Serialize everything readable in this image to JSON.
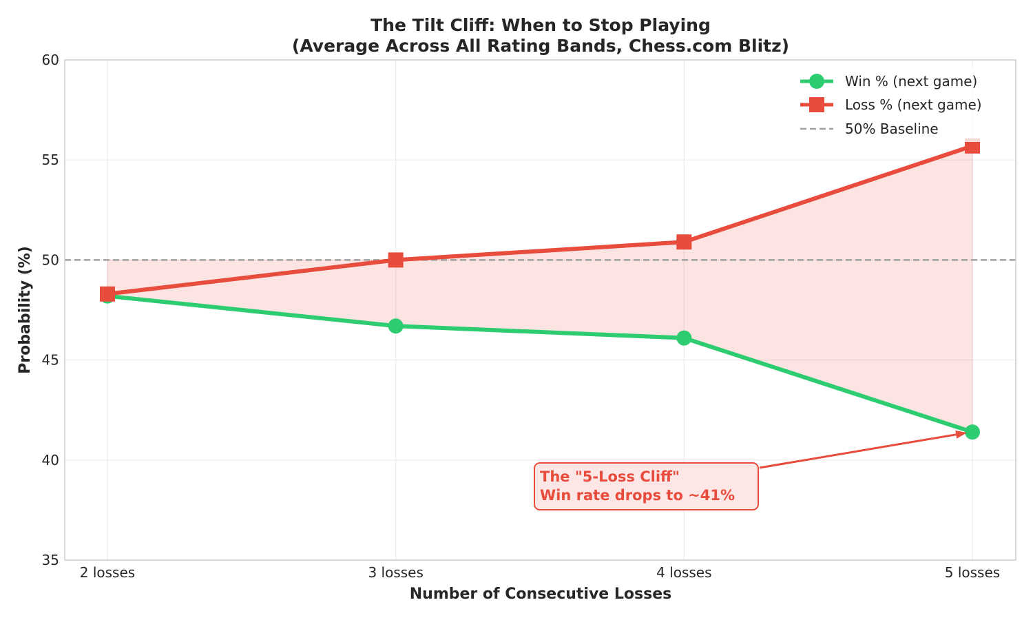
{
  "chart_data": {
    "type": "line",
    "title": [
      "The Tilt Cliff: When to Stop Playing",
      "(Average Across All Rating Bands, Chess.com Blitz)"
    ],
    "xlabel": "Number of Consecutive Losses",
    "ylabel": "Probability (%)",
    "categories": [
      "2 losses",
      "3 losses",
      "4 losses",
      "5 losses"
    ],
    "ylim": [
      35,
      60
    ],
    "yticks": [
      35,
      40,
      45,
      50,
      55,
      60
    ],
    "grid": true,
    "legend_position": "top-right",
    "series": [
      {
        "name": "Win % (next game)",
        "values": [
          48.2,
          46.7,
          46.1,
          41.4
        ],
        "color": "#2ecc71",
        "marker": "circle"
      },
      {
        "name": "Loss % (next game)",
        "values": [
          48.3,
          50.0,
          50.9,
          55.7
        ],
        "color": "#e74c3c",
        "marker": "square"
      }
    ],
    "baseline": {
      "name": "50% Baseline",
      "value": 50,
      "color": "#a0a0a0",
      "style": "dashed"
    },
    "fill_between": {
      "color": "#e74c3c",
      "opacity": 0.15
    },
    "annotation": {
      "lines": [
        "The \"5-Loss Cliff\"",
        "Win rate drops to ~41%"
      ],
      "target_category": "5 losses",
      "target_value": 41.4,
      "color": "#e74c3c",
      "background": "#fde6e6"
    }
  }
}
